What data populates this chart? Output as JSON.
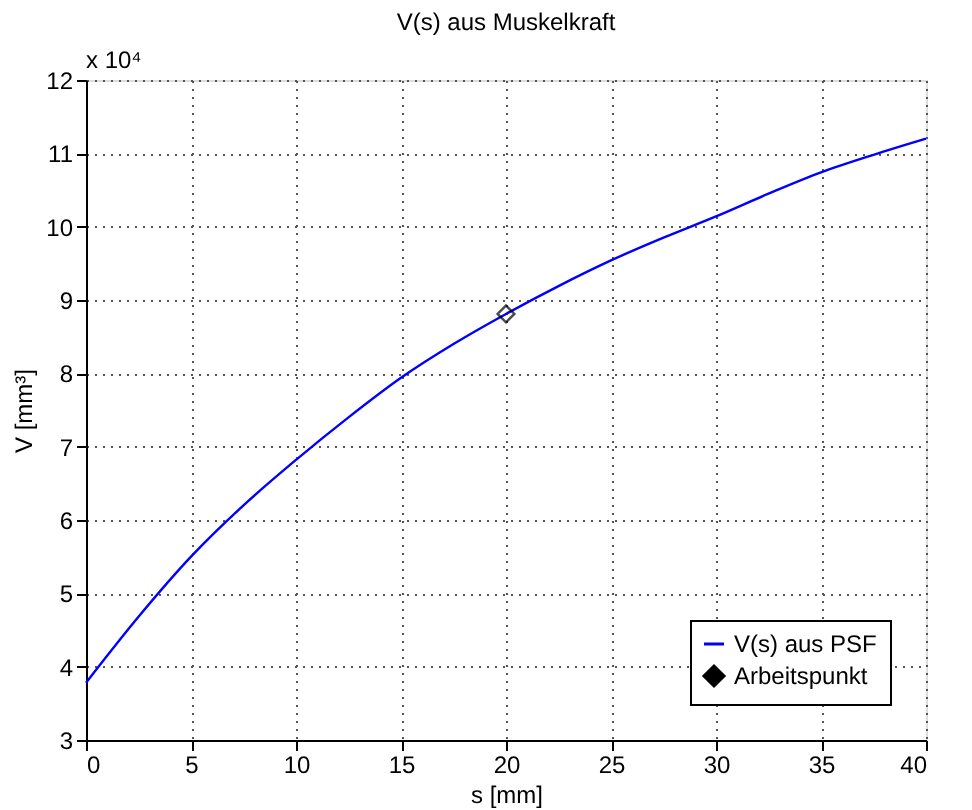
{
  "chart_data": {
    "type": "line",
    "title": "V(s) aus Muskelkraft",
    "xlabel": "s [mm]",
    "ylabel": "V [mm³]",
    "annotations": [
      "x 10⁴"
    ],
    "xlim": [
      0,
      40
    ],
    "xticks": [
      0,
      5,
      10,
      15,
      20,
      25,
      30,
      35,
      40
    ],
    "ylim": [
      3,
      12
    ],
    "yticks": [
      3,
      4,
      5,
      6,
      7,
      8,
      9,
      10,
      11,
      12
    ],
    "grid": true,
    "legend": "bottom right",
    "series": [
      {
        "name": "V(s) aus PSF",
        "color": "#0000ff",
        "marker": "none",
        "line_style": "solid",
        "x": [
          0,
          2.5,
          5,
          7.5,
          10,
          12.5,
          15,
          17.5,
          20,
          22.5,
          25,
          27.5,
          30,
          32.5,
          35,
          37.5,
          40
        ],
        "values": [
          3.78,
          4.68,
          5.5,
          6.2,
          6.82,
          7.4,
          7.94,
          8.4,
          8.81,
          9.19,
          9.54,
          9.85,
          10.14,
          10.45,
          10.74,
          10.98,
          11.2
        ]
      },
      {
        "name": "Arbeitspunkt",
        "color": "#000000",
        "type": "scatter",
        "marker": "diamond",
        "x": [
          20
        ],
        "values": [
          8.81
        ]
      }
    ]
  }
}
